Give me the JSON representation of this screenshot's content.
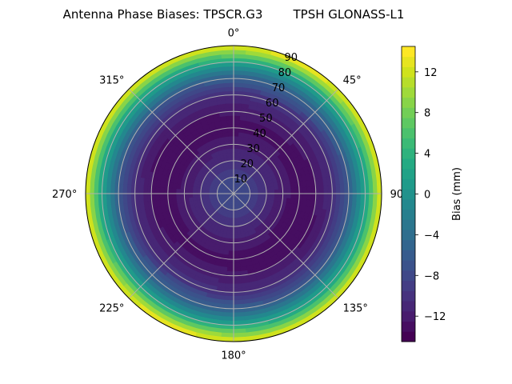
{
  "chart_data": {
    "type": "heatmap",
    "projection": "polar",
    "title": "Antenna Phase Biases: TPSCR.G3        TPSH GLONASS-L1",
    "theta_ticks": [
      {
        "deg": 0,
        "label": "0°"
      },
      {
        "deg": 45,
        "label": "45°"
      },
      {
        "deg": 90,
        "label": "90°"
      },
      {
        "deg": 135,
        "label": "135°"
      },
      {
        "deg": 180,
        "label": "180°"
      },
      {
        "deg": 225,
        "label": "225°"
      },
      {
        "deg": 270,
        "label": "270°"
      },
      {
        "deg": 315,
        "label": "315°"
      }
    ],
    "radial_axis": {
      "label": "",
      "range": [
        0,
        90
      ],
      "ticks": [
        10,
        20,
        30,
        40,
        50,
        60,
        70,
        80,
        90
      ]
    },
    "theta_direction": "clockwise",
    "theta_zero": "top",
    "grid": true,
    "radial_profile": {
      "zenith_angle": [
        0,
        10,
        20,
        30,
        40,
        50,
        60,
        70,
        80,
        90
      ],
      "bias_mm": [
        -8.0,
        -8.5,
        -10.5,
        -12.0,
        -13.0,
        -12.5,
        -10.5,
        -6.0,
        2.0,
        13.5
      ]
    },
    "colorbar": {
      "label": "Bias (mm)",
      "range": [
        -14.5,
        14.5
      ],
      "ticks": [
        -12,
        -8,
        -4,
        0,
        4,
        8,
        12
      ],
      "tick_labels": [
        "−12",
        "−8",
        "−4",
        "0",
        "4",
        "8",
        "12"
      ],
      "colormap": "viridis"
    }
  }
}
